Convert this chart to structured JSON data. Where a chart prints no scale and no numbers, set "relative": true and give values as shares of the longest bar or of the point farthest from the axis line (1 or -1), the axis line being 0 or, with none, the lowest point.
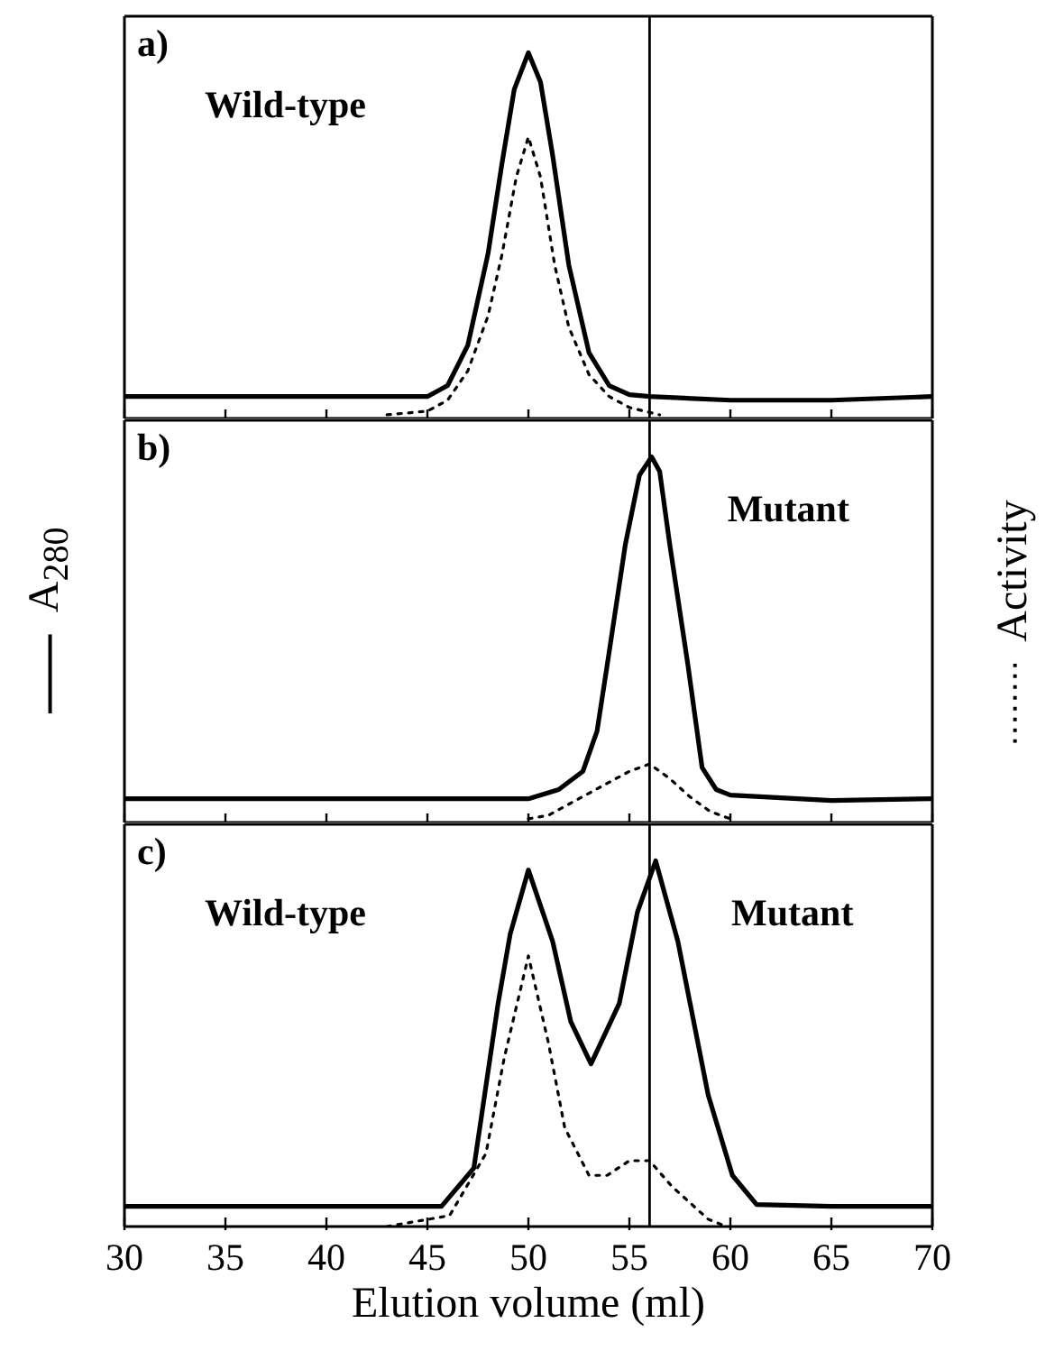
{
  "chart_data": [
    {
      "type": "line",
      "title": "a)",
      "relative": true,
      "xlim": [
        30,
        70
      ],
      "xticks": [
        30,
        35,
        40,
        45,
        50,
        55,
        60,
        65,
        70
      ],
      "tick_labels": false,
      "ref_lines": [
        {
          "axis": "x",
          "value": 56
        }
      ],
      "annotations": [
        "Wild-type"
      ],
      "series": [
        {
          "color": "#000000",
          "line_style": "solid",
          "x": [
            30,
            45,
            46,
            47,
            48,
            48.7,
            49.3,
            50,
            50.6,
            51.2,
            52,
            53,
            54,
            55,
            56,
            60,
            65,
            70
          ],
          "values": [
            0.06,
            0.06,
            0.09,
            0.2,
            0.45,
            0.7,
            0.9,
            1,
            0.92,
            0.72,
            0.42,
            0.18,
            0.09,
            0.065,
            0.06,
            0.05,
            0.05,
            0.06
          ]
        },
        {
          "color": "#000000",
          "line_style": "dotted",
          "x": [
            43,
            45,
            46,
            47,
            48,
            48.7,
            49.4,
            50,
            50.6,
            51.3,
            52,
            53,
            54,
            55,
            56.5
          ],
          "values": [
            0.01,
            0.02,
            0.05,
            0.13,
            0.28,
            0.45,
            0.66,
            0.77,
            0.66,
            0.42,
            0.25,
            0.12,
            0.06,
            0.03,
            0.01
          ]
        }
      ]
    },
    {
      "type": "line",
      "title": "b)",
      "relative": true,
      "xlim": [
        30,
        70
      ],
      "xticks": [
        30,
        35,
        40,
        45,
        50,
        55,
        60,
        65,
        70
      ],
      "tick_labels": false,
      "ylabel": "A$_{280}$",
      "y2label": "Activity",
      "ref_lines": [
        {
          "axis": "x",
          "value": 56
        }
      ],
      "annotations": [
        "Mutant"
      ],
      "series": [
        {
          "color": "#000000",
          "line_style": "solid",
          "x": [
            30,
            50,
            51.5,
            52.7,
            53.4,
            53.9,
            54.8,
            55.5,
            56.1,
            56.5,
            57,
            57.9,
            58.6,
            59.3,
            60,
            65,
            70
          ],
          "values": [
            0.065,
            0.065,
            0.09,
            0.14,
            0.25,
            0.43,
            0.76,
            0.95,
            1,
            0.96,
            0.76,
            0.43,
            0.15,
            0.09,
            0.075,
            0.06,
            0.065
          ]
        },
        {
          "color": "#000000",
          "line_style": "dotted",
          "x": [
            50,
            51,
            52,
            53,
            54,
            55,
            56,
            57,
            58,
            59,
            60
          ],
          "values": [
            0.01,
            0.02,
            0.05,
            0.08,
            0.11,
            0.14,
            0.16,
            0.12,
            0.07,
            0.03,
            0.01
          ]
        }
      ]
    },
    {
      "type": "line",
      "title": "c)",
      "relative": true,
      "xlim": [
        30,
        70
      ],
      "xticks": [
        30,
        35,
        40,
        45,
        50,
        55,
        60,
        65,
        70
      ],
      "tick_labels": "x",
      "xlabel": "Elution volume (ml)",
      "ref_lines": [
        {
          "axis": "x",
          "value": 56
        }
      ],
      "annotations": [
        "Wild-type",
        "Mutant"
      ],
      "series": [
        {
          "color": "#000000",
          "line_style": "solid",
          "x": [
            30,
            45.7,
            47.3,
            48.5,
            49.1,
            50,
            51.2,
            52.1,
            53.1,
            54.5,
            55.4,
            56.3,
            57.4,
            58.9,
            60.1,
            61.3,
            65,
            70
          ],
          "values": [
            0.055,
            0.055,
            0.16,
            0.61,
            0.8,
            0.975,
            0.78,
            0.56,
            0.445,
            0.61,
            0.86,
            1,
            0.78,
            0.36,
            0.14,
            0.06,
            0.055,
            0.055
          ]
        },
        {
          "color": "#000000",
          "line_style": "dotted",
          "x": [
            43,
            46.1,
            47.9,
            48.8,
            50,
            51,
            51.8,
            53,
            53.9,
            55,
            56,
            57.1,
            58.9,
            59.8
          ],
          "values": [
            0,
            0.03,
            0.2,
            0.46,
            0.74,
            0.5,
            0.27,
            0.14,
            0.14,
            0.18,
            0.18,
            0.11,
            0.02,
            0
          ]
        }
      ]
    }
  ]
}
